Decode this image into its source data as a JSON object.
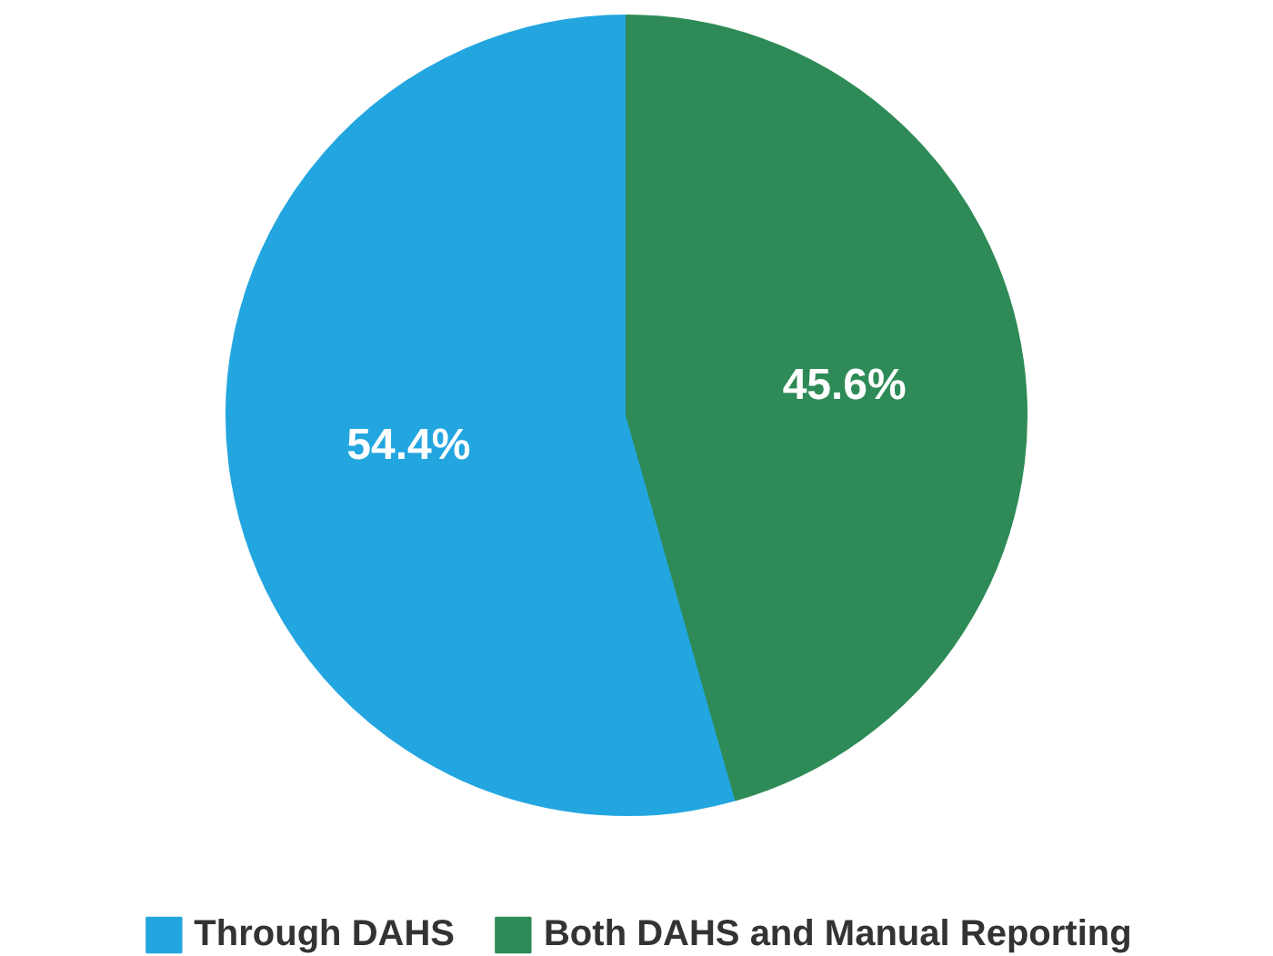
{
  "chart_data": {
    "type": "pie",
    "categories": [
      "Through DAHS",
      "Both DAHS and Manual Reporting"
    ],
    "values": [
      54.4,
      45.6
    ],
    "colors": [
      "#23a6e0",
      "#2e8b57"
    ],
    "value_labels": [
      "54.4%",
      "45.6%"
    ],
    "legend": "bottom"
  }
}
